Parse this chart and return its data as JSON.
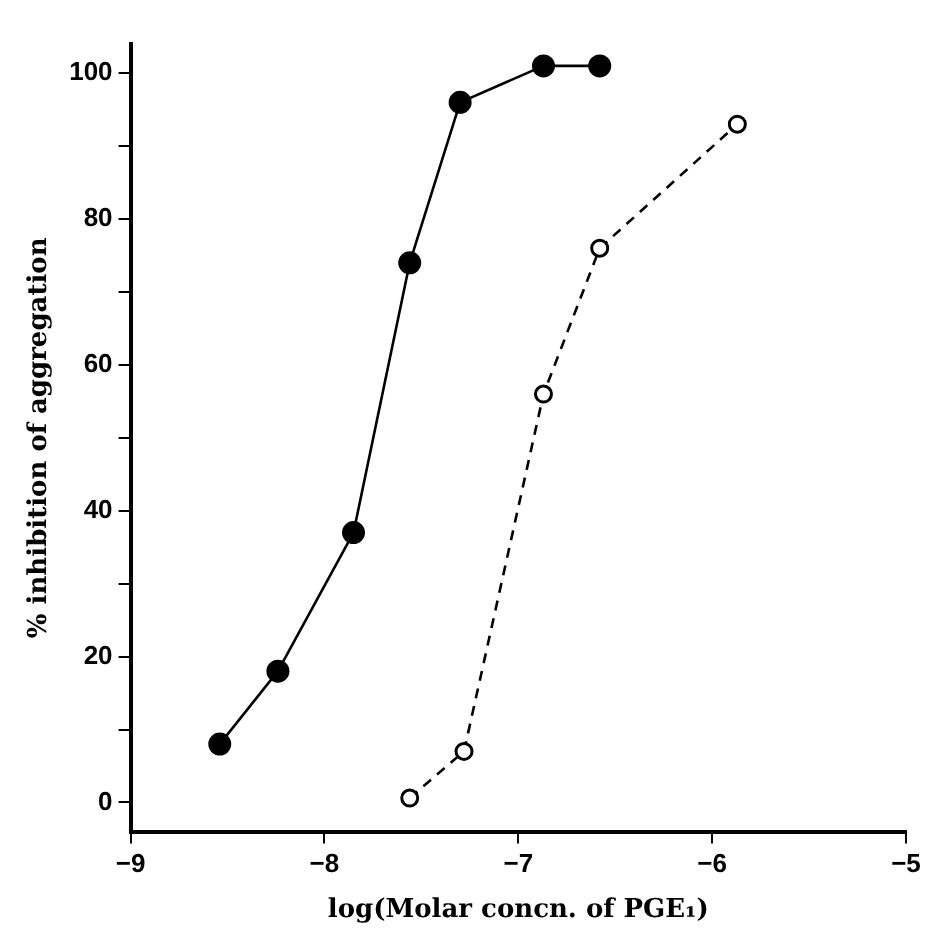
{
  "chart_data": {
    "type": "line",
    "xlabel": "log(Molar concn. of PGE₁)",
    "ylabel": "% inhibition of aggregation",
    "xlim": [
      -9,
      -5
    ],
    "xticks": [
      {
        "value": -9,
        "label": "−9"
      },
      {
        "value": -8,
        "label": "−8"
      },
      {
        "value": -7,
        "label": "−7"
      },
      {
        "value": -6,
        "label": "−6"
      },
      {
        "value": -5,
        "label": "−5"
      }
    ],
    "ylim": [
      -4,
      104
    ],
    "yticks": [
      0,
      {
        "value": 10,
        "label": null
      },
      20,
      {
        "value": 30,
        "label": null
      },
      40,
      {
        "value": 50,
        "label": null
      },
      60,
      {
        "value": 70,
        "label": null
      },
      80,
      {
        "value": 90,
        "label": null
      },
      100
    ],
    "grid": false,
    "legend": false,
    "marker": "circle",
    "series": [
      {
        "color": "#000000",
        "line_style": "solid",
        "x": [
          -8.54,
          -8.24,
          -7.85,
          -7.56,
          -7.3,
          -6.87,
          -6.58
        ],
        "values": [
          8,
          18,
          37,
          74,
          96,
          101,
          101
        ]
      },
      {
        "color": "#000000",
        "line_style": "dashed",
        "x": [
          -7.56,
          -7.28,
          -6.87,
          -6.58,
          -5.87
        ],
        "values": [
          0.6,
          7,
          56,
          76,
          93
        ]
      }
    ]
  }
}
